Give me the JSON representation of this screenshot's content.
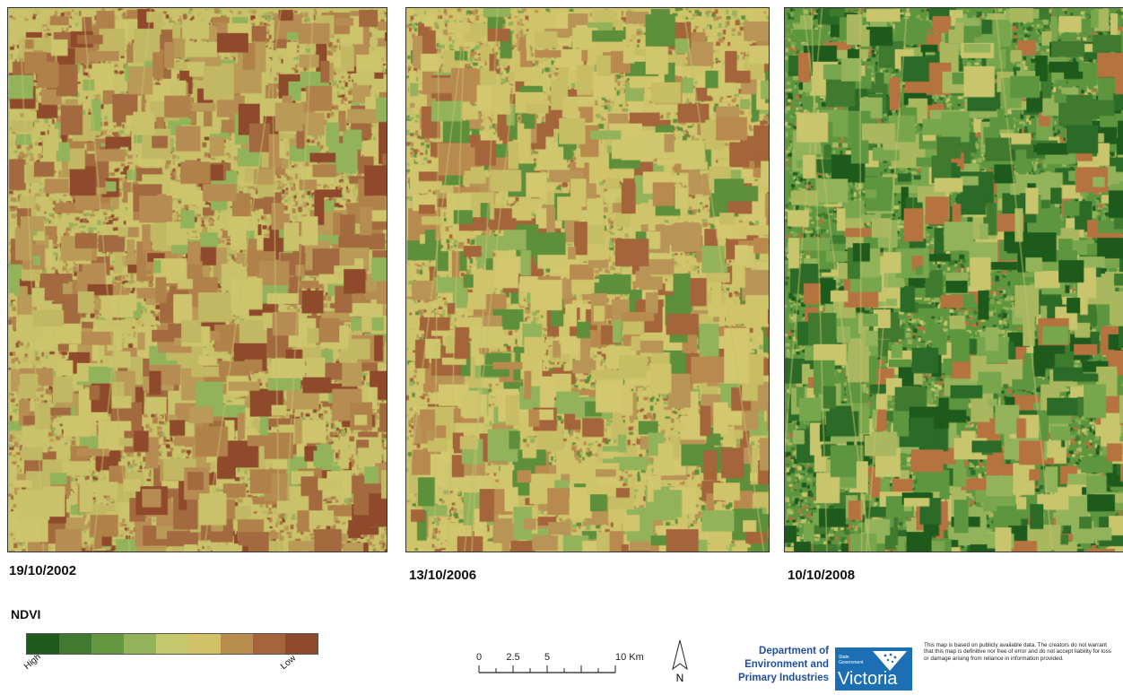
{
  "panels": [
    {
      "date": "19/10/2002",
      "palette_bias": "low"
    },
    {
      "date": "13/10/2006",
      "palette_bias": "mid"
    },
    {
      "date": "10/10/2008",
      "palette_bias": "high"
    }
  ],
  "legend": {
    "title": "NDVI",
    "high_label": "High",
    "low_label": "Low",
    "colors": [
      "#1e5a1c",
      "#3f7a2e",
      "#64973f",
      "#93b35b",
      "#c6c86d",
      "#d1c268",
      "#b88e4f",
      "#a4653a",
      "#8e4a2a"
    ]
  },
  "scale": {
    "ticks": [
      "0",
      "2.5",
      "5",
      "10 Km"
    ]
  },
  "north_label": "N",
  "department": {
    "line1": "Department of",
    "line2": "Environment and",
    "line3": "Primary Industries"
  },
  "victoria_logo": {
    "gov_text": "State Government",
    "word": "Victoria"
  },
  "disclaimer": "This map is based on publicly available data. The creators do not warrant that this map is definitive nor free of error and do not accept liability for loss or damage arising from reliance in information provided."
}
